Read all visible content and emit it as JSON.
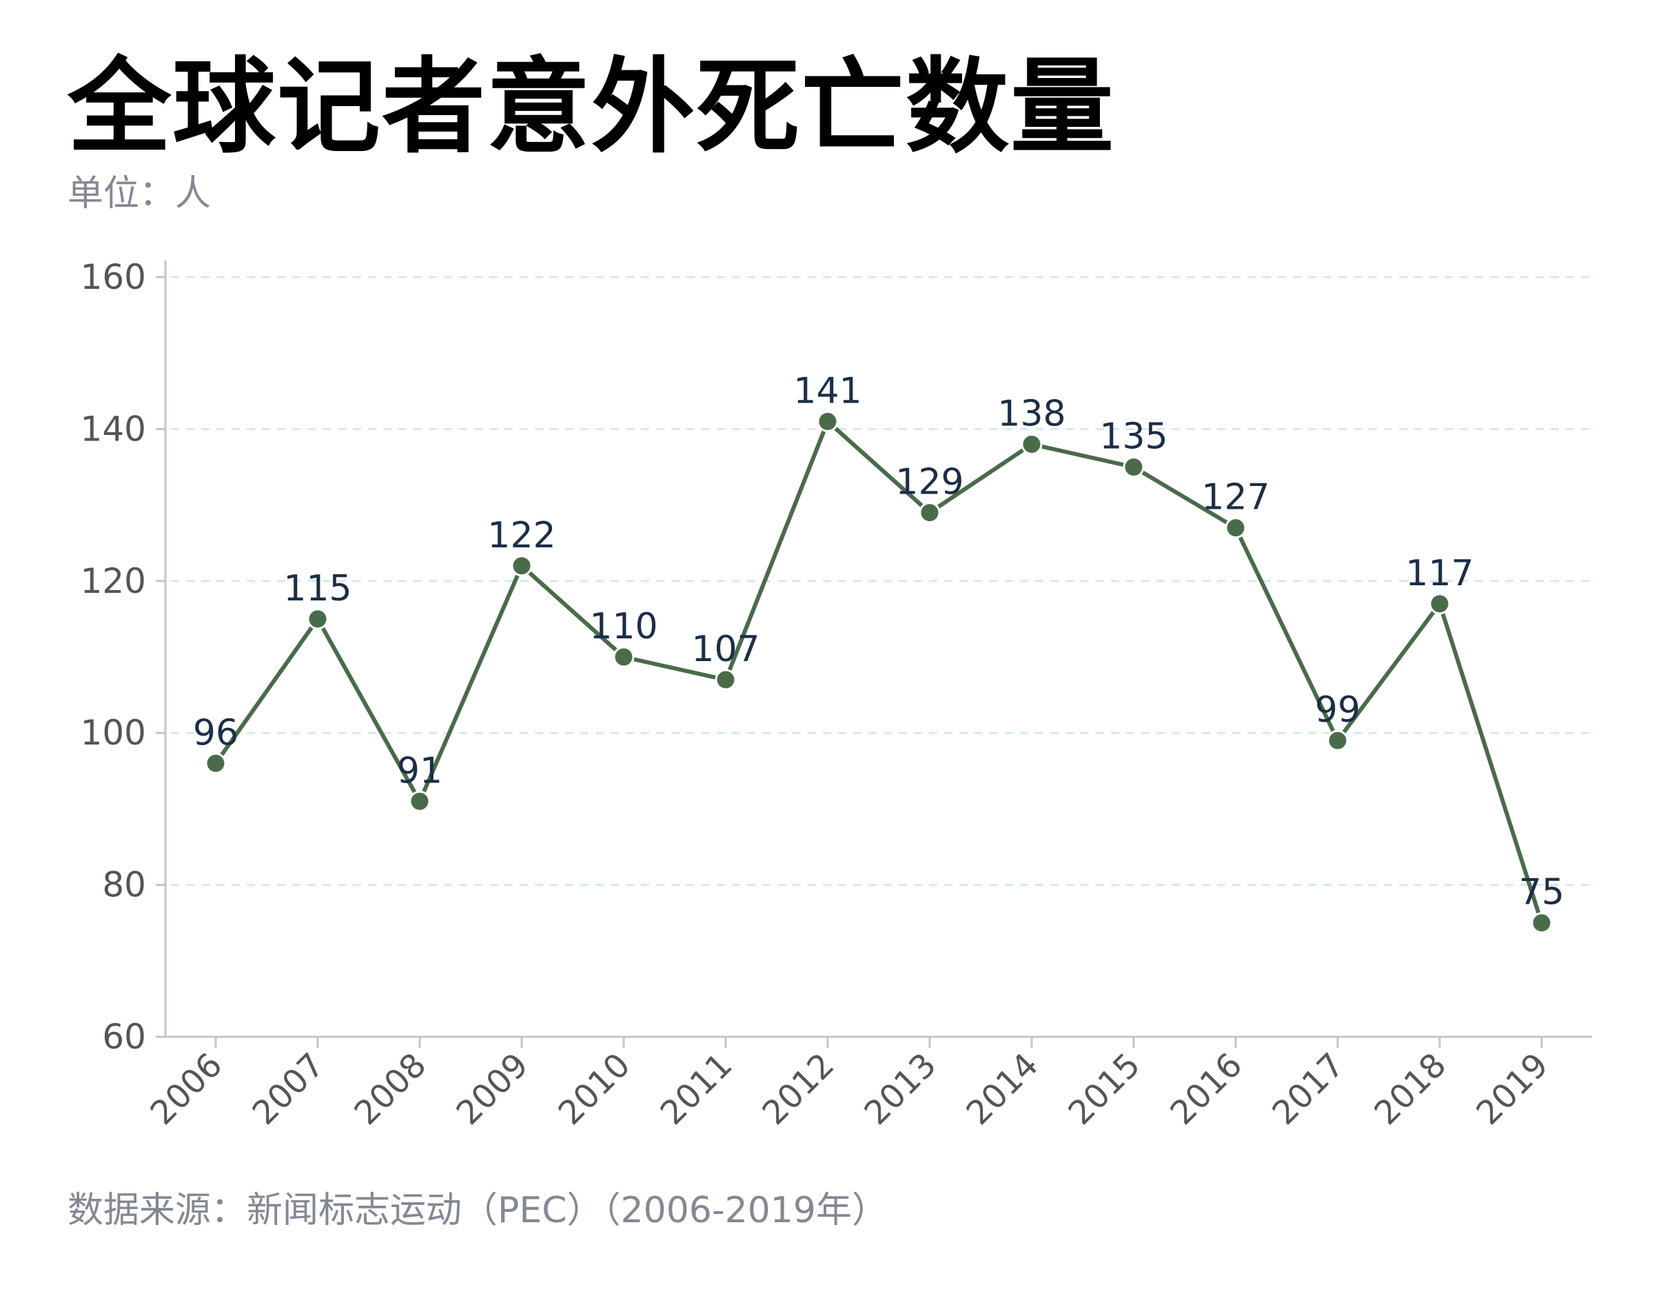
{
  "chart_data": {
    "type": "line",
    "title": "全球记者意外死亡数量",
    "subtitle": "单位：人",
    "source": "数据来源：新闻标志运动（PEC）（2006-2019年）",
    "xlabel": "",
    "ylabel": "",
    "categories": [
      "2006",
      "2007",
      "2008",
      "2009",
      "2010",
      "2011",
      "2012",
      "2013",
      "2014",
      "2015",
      "2016",
      "2017",
      "2018",
      "2019"
    ],
    "series": [
      {
        "name": "全球记者意外死亡数量",
        "values": [
          96,
          115,
          91,
          122,
          110,
          107,
          141,
          129,
          138,
          135,
          127,
          99,
          117,
          75
        ]
      }
    ],
    "ylim": [
      60,
      160
    ],
    "yticks": [
      60,
      80,
      100,
      120,
      140,
      160
    ],
    "grid": true,
    "colors": {
      "line": "#4a6b4a",
      "label": "#1b2e45",
      "axis": "#c4c4c4",
      "grid": "#d6ebe6",
      "tick_text": "#555555"
    }
  }
}
